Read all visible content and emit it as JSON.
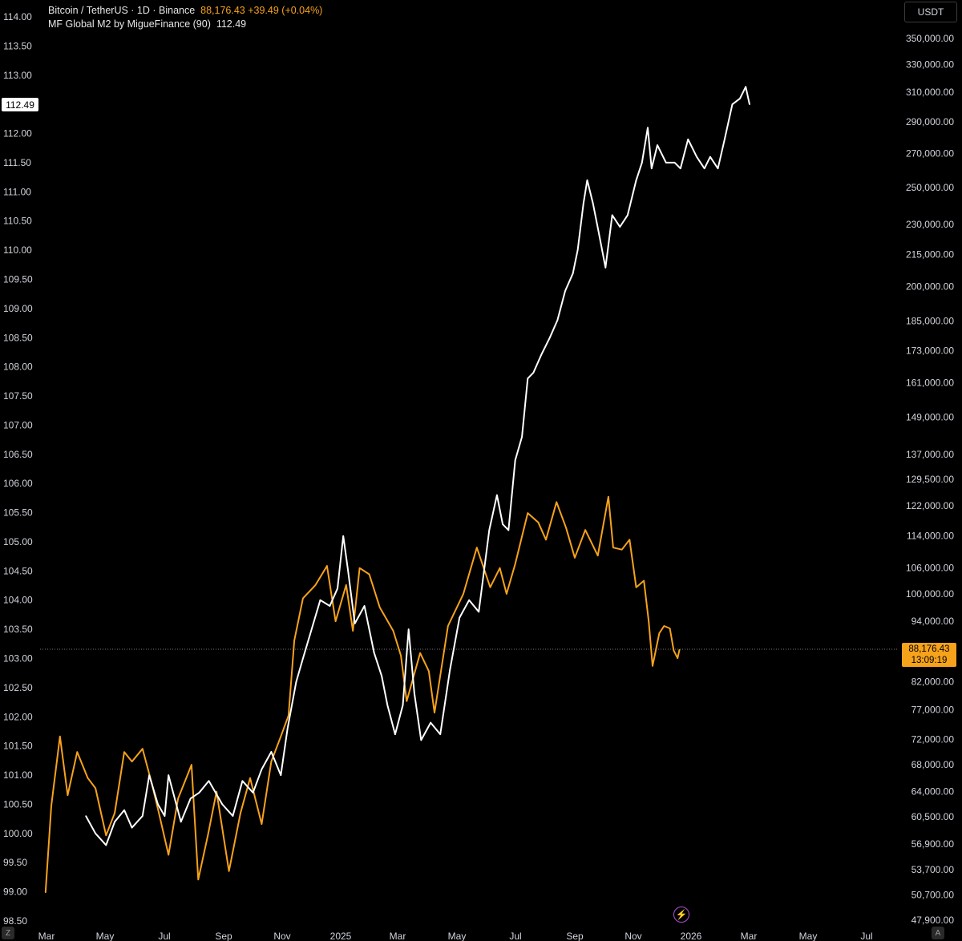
{
  "legend": {
    "line1_title": "Bitcoin / TetherUS · 1D · Binance",
    "line1_value": "88,176.43 +39.49 (+0.04%)",
    "line2_title": "MF Global M2 by MigueFinance (90)",
    "line2_value": "112.49"
  },
  "unit_button": "USDT",
  "m2_last_label": "112.49",
  "btc_last_price": "88,176.43",
  "btc_countdown": "13:09:19",
  "corner_left": "Z",
  "corner_right": "A",
  "icons": {
    "bolt": "lightning-bolt-icon"
  },
  "colors": {
    "btc": "#f7a21b",
    "m2": "#ffffff",
    "background": "#000000"
  },
  "chart_data": {
    "type": "line",
    "title": "Bitcoin / TetherUS · 1D · Binance",
    "x_ticks": [
      "Mar",
      "May",
      "Jul",
      "Sep",
      "Nov",
      "2025",
      "Mar",
      "May",
      "Jul",
      "Sep",
      "Nov",
      "2026",
      "Mar",
      "May",
      "Jul"
    ],
    "left_axis": {
      "ticks": [
        "114.00",
        "113.50",
        "113.00",
        "112.00",
        "111.50",
        "111.00",
        "110.50",
        "110.00",
        "109.50",
        "109.00",
        "108.50",
        "108.00",
        "107.50",
        "107.00",
        "106.50",
        "106.00",
        "105.50",
        "105.00",
        "104.50",
        "104.00",
        "103.50",
        "103.00",
        "102.50",
        "102.00",
        "101.50",
        "101.00",
        "100.50",
        "100.00",
        "99.50",
        "99.00",
        "98.50"
      ],
      "range": [
        98.5,
        114.0
      ]
    },
    "right_axis": {
      "ticks": [
        "350,000.00",
        "330,000.00",
        "310,000.00",
        "290,000.00",
        "270,000.00",
        "250,000.00",
        "230,000.00",
        "215,000.00",
        "200,000.00",
        "185,000.00",
        "173,000.00",
        "161,000.00",
        "149,000.00",
        "137,000.00",
        "129,500.00",
        "122,000.00",
        "114,000.00",
        "106,000.00",
        "100,000.00",
        "94,000.00",
        "82,000.00",
        "77,000.00",
        "72,000.00",
        "68,000.00",
        "64,000.00",
        "60,500.00",
        "56,900.00",
        "53,700.00",
        "50,700.00",
        "47,900.00"
      ],
      "scale": "log"
    },
    "series": [
      {
        "name": "Bitcoin / TetherUS",
        "color": "#f7a21b",
        "axis": "right",
        "points": [
          [
            "2024-02-28",
            51000
          ],
          [
            "2024-03-05",
            62000
          ],
          [
            "2024-03-14",
            72500
          ],
          [
            "2024-03-22",
            63500
          ],
          [
            "2024-04-01",
            70000
          ],
          [
            "2024-04-12",
            66000
          ],
          [
            "2024-04-20",
            64500
          ],
          [
            "2024-05-01",
            58000
          ],
          [
            "2024-05-10",
            61000
          ],
          [
            "2024-05-20",
            70000
          ],
          [
            "2024-05-28",
            68500
          ],
          [
            "2024-06-08",
            70500
          ],
          [
            "2024-06-18",
            65000
          ],
          [
            "2024-06-25",
            61000
          ],
          [
            "2024-07-05",
            55500
          ],
          [
            "2024-07-15",
            63000
          ],
          [
            "2024-07-29",
            68000
          ],
          [
            "2024-08-05",
            52500
          ],
          [
            "2024-08-15",
            58000
          ],
          [
            "2024-08-24",
            64000
          ],
          [
            "2024-09-06",
            53500
          ],
          [
            "2024-09-18",
            61000
          ],
          [
            "2024-09-28",
            66000
          ],
          [
            "2024-10-10",
            59500
          ],
          [
            "2024-10-20",
            68500
          ],
          [
            "2024-10-30",
            72500
          ],
          [
            "2024-11-07",
            76000
          ],
          [
            "2024-11-13",
            90000
          ],
          [
            "2024-11-22",
            99000
          ],
          [
            "2024-12-05",
            102000
          ],
          [
            "2024-12-17",
            106500
          ],
          [
            "2024-12-26",
            94000
          ],
          [
            "2025-01-06",
            102000
          ],
          [
            "2025-01-13",
            92000
          ],
          [
            "2025-01-20",
            106000
          ],
          [
            "2025-01-30",
            104500
          ],
          [
            "2025-02-10",
            97000
          ],
          [
            "2025-02-24",
            92000
          ],
          [
            "2025-03-04",
            87000
          ],
          [
            "2025-03-10",
            78500
          ],
          [
            "2025-03-24",
            87500
          ],
          [
            "2025-04-02",
            84000
          ],
          [
            "2025-04-08",
            76500
          ],
          [
            "2025-04-22",
            93000
          ],
          [
            "2025-05-08",
            100000
          ],
          [
            "2025-05-22",
            111000
          ],
          [
            "2025-06-05",
            101500
          ],
          [
            "2025-06-15",
            106000
          ],
          [
            "2025-06-22",
            100000
          ],
          [
            "2025-07-01",
            107000
          ],
          [
            "2025-07-14",
            120000
          ],
          [
            "2025-07-25",
            117500
          ],
          [
            "2025-08-02",
            113000
          ],
          [
            "2025-08-13",
            123000
          ],
          [
            "2025-08-23",
            116000
          ],
          [
            "2025-09-01",
            108500
          ],
          [
            "2025-09-12",
            115500
          ],
          [
            "2025-09-25",
            109000
          ],
          [
            "2025-10-06",
            124500
          ],
          [
            "2025-10-11",
            111000
          ],
          [
            "2025-10-20",
            110500
          ],
          [
            "2025-10-28",
            113000
          ],
          [
            "2025-11-04",
            101500
          ],
          [
            "2025-11-12",
            103000
          ],
          [
            "2025-11-17",
            94000
          ],
          [
            "2025-11-21",
            85000
          ],
          [
            "2025-11-28",
            91500
          ],
          [
            "2025-12-03",
            93000
          ],
          [
            "2025-12-09",
            92500
          ],
          [
            "2025-12-13",
            88000
          ],
          [
            "2025-12-17",
            86500
          ],
          [
            "2025-12-19",
            88176
          ]
        ]
      },
      {
        "name": "MF Global M2 by MigueFinance (90)",
        "color": "#ffffff",
        "axis": "left",
        "points": [
          [
            "2024-04-10",
            100.3
          ],
          [
            "2024-04-20",
            100.0
          ],
          [
            "2024-05-01",
            99.8
          ],
          [
            "2024-05-10",
            100.2
          ],
          [
            "2024-05-20",
            100.4
          ],
          [
            "2024-05-28",
            100.1
          ],
          [
            "2024-06-08",
            100.3
          ],
          [
            "2024-06-15",
            101.0
          ],
          [
            "2024-06-24",
            100.5
          ],
          [
            "2024-07-01",
            100.3
          ],
          [
            "2024-07-05",
            101.0
          ],
          [
            "2024-07-18",
            100.2
          ],
          [
            "2024-07-28",
            100.6
          ],
          [
            "2024-08-06",
            100.7
          ],
          [
            "2024-08-16",
            100.9
          ],
          [
            "2024-08-30",
            100.5
          ],
          [
            "2024-09-10",
            100.3
          ],
          [
            "2024-09-20",
            100.9
          ],
          [
            "2024-10-01",
            100.7
          ],
          [
            "2024-10-10",
            101.1
          ],
          [
            "2024-10-20",
            101.4
          ],
          [
            "2024-10-30",
            101.0
          ],
          [
            "2024-11-06",
            101.8
          ],
          [
            "2024-11-15",
            102.6
          ],
          [
            "2024-11-22",
            103.0
          ],
          [
            "2024-12-01",
            103.5
          ],
          [
            "2024-12-10",
            104.0
          ],
          [
            "2024-12-20",
            103.9
          ],
          [
            "2024-12-28",
            104.2
          ],
          [
            "2025-01-03",
            105.1
          ],
          [
            "2025-01-08",
            104.5
          ],
          [
            "2025-01-15",
            103.6
          ],
          [
            "2025-01-25",
            103.9
          ],
          [
            "2025-02-04",
            103.1
          ],
          [
            "2025-02-12",
            102.7
          ],
          [
            "2025-02-18",
            102.2
          ],
          [
            "2025-02-26",
            101.7
          ],
          [
            "2025-03-06",
            102.2
          ],
          [
            "2025-03-12",
            103.5
          ],
          [
            "2025-03-18",
            102.4
          ],
          [
            "2025-03-25",
            101.6
          ],
          [
            "2025-04-04",
            101.9
          ],
          [
            "2025-04-14",
            101.7
          ],
          [
            "2025-04-24",
            102.8
          ],
          [
            "2025-05-04",
            103.7
          ],
          [
            "2025-05-14",
            104.0
          ],
          [
            "2025-05-24",
            103.8
          ],
          [
            "2025-06-04",
            105.2
          ],
          [
            "2025-06-12",
            105.8
          ],
          [
            "2025-06-18",
            105.3
          ],
          [
            "2025-06-24",
            105.2
          ],
          [
            "2025-07-01",
            106.4
          ],
          [
            "2025-07-08",
            106.8
          ],
          [
            "2025-07-14",
            107.8
          ],
          [
            "2025-07-20",
            107.9
          ],
          [
            "2025-07-28",
            108.2
          ],
          [
            "2025-08-06",
            108.5
          ],
          [
            "2025-08-14",
            108.8
          ],
          [
            "2025-08-22",
            109.3
          ],
          [
            "2025-08-30",
            109.6
          ],
          [
            "2025-09-04",
            110.0
          ],
          [
            "2025-09-10",
            110.8
          ],
          [
            "2025-09-14",
            111.2
          ],
          [
            "2025-09-20",
            110.8
          ],
          [
            "2025-09-26",
            110.3
          ],
          [
            "2025-10-03",
            109.7
          ],
          [
            "2025-10-10",
            110.6
          ],
          [
            "2025-10-18",
            110.4
          ],
          [
            "2025-10-26",
            110.6
          ],
          [
            "2025-11-04",
            111.2
          ],
          [
            "2025-11-10",
            111.5
          ],
          [
            "2025-11-16",
            112.1
          ],
          [
            "2025-11-20",
            111.4
          ],
          [
            "2025-11-26",
            111.8
          ],
          [
            "2025-12-05",
            111.5
          ],
          [
            "2025-12-14",
            111.5
          ],
          [
            "2025-12-20",
            111.4
          ],
          [
            "2025-12-28",
            111.9
          ],
          [
            "2026-01-06",
            111.6
          ],
          [
            "2026-01-14",
            111.4
          ],
          [
            "2026-01-20",
            111.6
          ],
          [
            "2026-01-28",
            111.4
          ],
          [
            "2026-02-04",
            111.9
          ],
          [
            "2026-02-12",
            112.5
          ],
          [
            "2026-02-20",
            112.6
          ],
          [
            "2026-02-26",
            112.8
          ],
          [
            "2026-03-02",
            112.5
          ]
        ]
      }
    ]
  }
}
